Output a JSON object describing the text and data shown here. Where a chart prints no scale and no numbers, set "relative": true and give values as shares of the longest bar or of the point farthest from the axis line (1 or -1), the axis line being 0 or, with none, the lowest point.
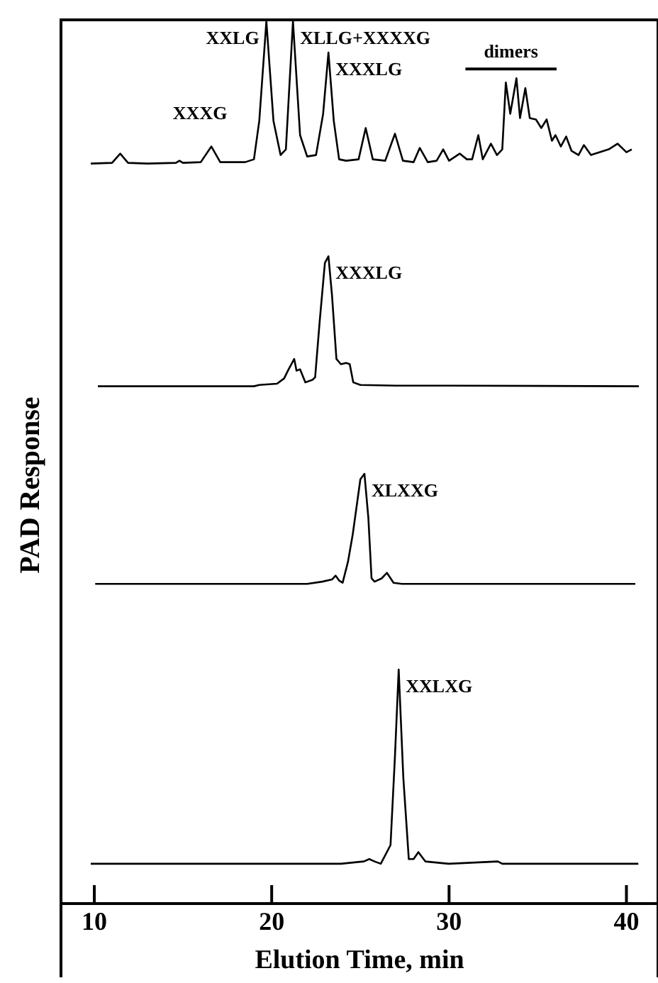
{
  "chart_data": [
    {
      "type": "line",
      "relative": true,
      "xlim": [
        8.2,
        41.7
      ],
      "tick_labels": false,
      "x": [
        9.8,
        11.0,
        11.46,
        11.9,
        13.0,
        14.6,
        14.8,
        15.0,
        16.0,
        16.6,
        17.1,
        18.5,
        19.0,
        19.3,
        19.7,
        20.1,
        20.5,
        20.8,
        21.2,
        21.6,
        22.0,
        22.5,
        22.9,
        23.2,
        23.5,
        23.8,
        24.2,
        24.9,
        25.3,
        25.7,
        26.4,
        26.95,
        27.4,
        28.0,
        28.35,
        28.8,
        29.3,
        29.67,
        30.0,
        30.6,
        31.0,
        31.3,
        31.65,
        31.9,
        32.36,
        32.7,
        33.0,
        33.2,
        33.45,
        33.8,
        34.0,
        34.3,
        34.55,
        34.9,
        35.2,
        35.5,
        35.8,
        36.0,
        36.3,
        36.6,
        36.9,
        37.3,
        37.6,
        38.0,
        38.5,
        39.0,
        39.5,
        40.0,
        40.3
      ],
      "series": [
        {
          "color": "#000000",
          "values": [
            0,
            0.005,
            0.07,
            0.005,
            0,
            0.005,
            0.02,
            0.005,
            0.01,
            0.12,
            0.01,
            0.01,
            0.03,
            0.3,
            1,
            0.3,
            0.06,
            0.1,
            1,
            0.2,
            0.05,
            0.06,
            0.35,
            0.78,
            0.3,
            0.03,
            0.02,
            0.03,
            0.25,
            0.03,
            0.02,
            0.21,
            0.02,
            0.01,
            0.11,
            0.01,
            0.02,
            0.1,
            0.02,
            0.07,
            0.03,
            0.03,
            0.2,
            0.03,
            0.14,
            0.06,
            0.1,
            0.57,
            0.35,
            0.6,
            0.32,
            0.53,
            0.32,
            0.31,
            0.25,
            0.31,
            0.16,
            0.2,
            0.12,
            0.19,
            0.09,
            0.06,
            0.13,
            0.06,
            0.08,
            0.1,
            0.14,
            0.08,
            0.1
          ]
        }
      ],
      "annotations": [
        {
          "text": "XXXG",
          "x": 16.6,
          "y": 0.12
        },
        {
          "text": "XXLG",
          "x": 19.7,
          "y": 1
        },
        {
          "text": "XLLG+XXXXG",
          "x": 21.2,
          "y": 1
        },
        {
          "text": "XXXLG",
          "x": 23.2,
          "y": 0.78
        },
        "dimers"
      ]
    },
    {
      "type": "line",
      "relative": true,
      "xlim": [
        8.2,
        41.7
      ],
      "tick_labels": false,
      "x": [
        10.2,
        19.0,
        19.3,
        20.3,
        20.7,
        20.95,
        21.27,
        21.4,
        21.6,
        21.9,
        22.3,
        22.45,
        22.7,
        23.0,
        23.2,
        23.4,
        23.65,
        23.9,
        24.2,
        24.4,
        24.6,
        25.0,
        27.0,
        30.0,
        40.7
      ],
      "series": [
        {
          "color": "#000000",
          "values": [
            0,
            0,
            0.01,
            0.02,
            0.06,
            0.13,
            0.21,
            0.12,
            0.13,
            0.03,
            0.05,
            0.07,
            0.49,
            0.95,
            1,
            0.7,
            0.21,
            0.17,
            0.18,
            0.17,
            0.03,
            0.01,
            0.005,
            0.005,
            0
          ]
        }
      ],
      "annotations": [
        {
          "text": "XXXLG",
          "x": 23.2,
          "y": 1
        }
      ]
    },
    {
      "type": "line",
      "relative": true,
      "xlim": [
        8.2,
        41.7
      ],
      "tick_labels": false,
      "ylabel": "PAD Response",
      "x": [
        10.05,
        22.0,
        22.85,
        23.4,
        23.6,
        23.8,
        24.0,
        24.3,
        24.57,
        25.0,
        25.23,
        25.45,
        25.63,
        25.8,
        26.2,
        26.5,
        26.87,
        27.34,
        40.5
      ],
      "series": [
        {
          "color": "#000000",
          "values": [
            0,
            0,
            0.02,
            0.04,
            0.075,
            0.03,
            0.01,
            0.2,
            0.45,
            0.95,
            1,
            0.6,
            0.05,
            0.02,
            0.05,
            0.1,
            0.01,
            0,
            0
          ]
        }
      ],
      "annotations": [
        {
          "text": "XLXXG",
          "x": 25.23,
          "y": 1
        }
      ]
    },
    {
      "type": "line",
      "relative": true,
      "xlim": [
        8.2,
        41.7
      ],
      "xticks": [
        10,
        20,
        30,
        40
      ],
      "xlabel": "Elution Time, min",
      "x": [
        9.8,
        23.9,
        25.2,
        25.5,
        25.8,
        26.15,
        26.7,
        26.95,
        27.16,
        27.42,
        27.73,
        28.0,
        28.27,
        28.66,
        29.98,
        32.75,
        33.0,
        40.67
      ],
      "series": [
        {
          "color": "#000000",
          "values": [
            0.17,
            0.17,
            0.18,
            0.19,
            0.18,
            0.17,
            0.25,
            0.63,
            1,
            0.54,
            0.19,
            0.19,
            0.22,
            0.18,
            0.17,
            0.18,
            0.17,
            0.17
          ]
        }
      ],
      "annotations": [
        {
          "text": "XXLXG",
          "x": 27.16,
          "y": 1
        }
      ]
    }
  ]
}
